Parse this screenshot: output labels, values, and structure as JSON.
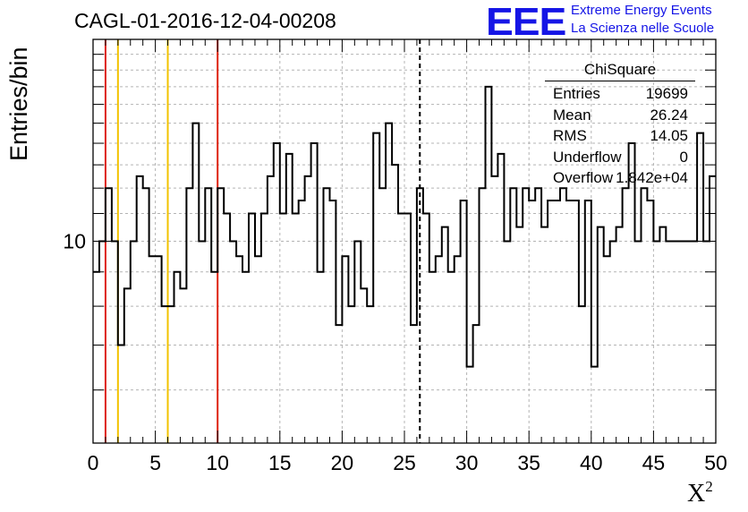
{
  "header": {
    "title": "CAGL-01-2016-12-04-00208",
    "logo_text": "EEE",
    "logo_line1": "Extreme Energy Events",
    "logo_line2": "La Scienza nelle Scuole",
    "logo_color": "#1515e6"
  },
  "stats_box": {
    "title": "ChiSquare",
    "rows": [
      {
        "label": "Entries",
        "value": "19699"
      },
      {
        "label": "Mean",
        "value": "26.24"
      },
      {
        "label": "RMS",
        "value": "14.05"
      },
      {
        "label": "Underflow",
        "value": "0"
      },
      {
        "label": "Overflow",
        "value": "1.842e+04"
      }
    ]
  },
  "chart_data": {
    "type": "histogram-step",
    "title": "CAGL-01-2016-12-04-00208",
    "xlabel": "X",
    "xlabel_superscript": "2",
    "ylabel": "Entries/bin",
    "x_range": [
      0,
      50
    ],
    "y_range": [
      5,
      20
    ],
    "y_scale": "log",
    "grid": true,
    "x_ticks": [
      0,
      5,
      10,
      15,
      20,
      25,
      30,
      35,
      40,
      45,
      50
    ],
    "y_tick_labels": [
      10
    ],
    "bin_width": 0.5,
    "bin_edges_start": 0,
    "values": [
      9,
      10,
      12,
      10,
      7,
      8.5,
      10,
      12.5,
      12,
      9.5,
      9.5,
      8,
      8,
      9,
      8.5,
      12,
      15,
      10,
      12,
      9,
      12,
      11,
      10,
      9.5,
      9,
      11,
      9.5,
      11,
      12.5,
      14,
      11,
      13.5,
      11,
      11.5,
      12.5,
      14,
      9,
      12,
      11.5,
      7.5,
      9.5,
      8,
      10,
      8.5,
      8,
      14.5,
      12,
      15,
      13,
      11,
      11,
      7.5,
      12,
      11,
      9,
      9.5,
      10.5,
      9,
      9.5,
      11.5,
      6.5,
      7.5,
      12,
      17,
      12.5,
      13.5,
      10,
      12,
      10.5,
      12,
      11.5,
      12,
      10.5,
      11.5,
      11.5,
      12,
      11.5,
      11.5,
      8,
      11.5,
      6.5,
      10.5,
      9.5,
      10,
      10.5,
      12,
      14,
      10,
      12,
      11.5,
      10,
      10.5,
      10,
      10,
      10,
      10,
      10,
      14.5,
      10,
      12.5
    ],
    "markers": [
      {
        "x": 1,
        "color": "#dd2211",
        "style": "solid"
      },
      {
        "x": 2,
        "color": "#f2c200",
        "style": "solid"
      },
      {
        "x": 6,
        "color": "#f2c200",
        "style": "solid"
      },
      {
        "x": 10,
        "color": "#dd2211",
        "style": "solid"
      },
      {
        "x": 26.24,
        "color": "#000000",
        "style": "dashed"
      }
    ]
  }
}
